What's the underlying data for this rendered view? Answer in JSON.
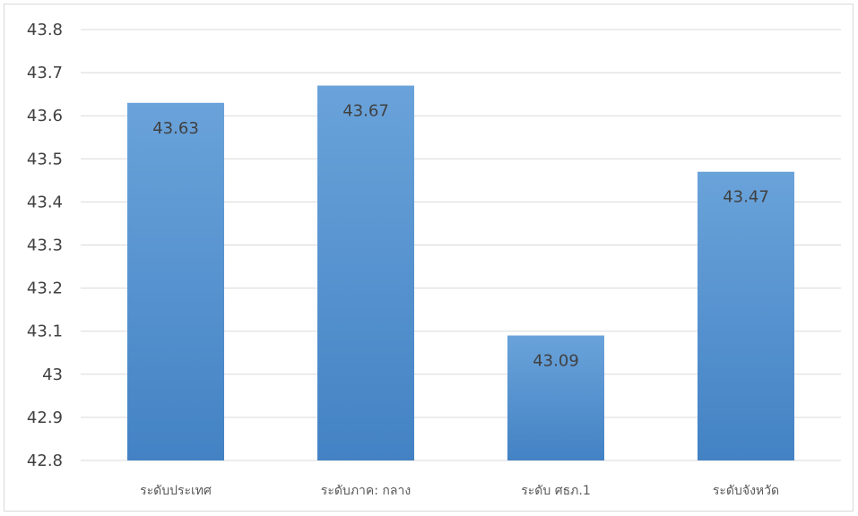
{
  "chart_data": {
    "type": "bar",
    "categories": [
      "ระดับประเทศ",
      "ระดับภาค: กลาง",
      "ระดับ ศธภ.1",
      "ระดับจังหวัด"
    ],
    "values": [
      43.63,
      43.67,
      43.09,
      43.47
    ],
    "data_labels": [
      "43.63",
      "43.67",
      "43.09",
      "43.47"
    ],
    "title": "",
    "xlabel": "",
    "ylabel": "",
    "ylim": [
      42.8,
      43.8
    ],
    "yticks": [
      42.8,
      42.9,
      43.0,
      43.1,
      43.2,
      43.3,
      43.4,
      43.5,
      43.6,
      43.7,
      43.8
    ],
    "ytick_labels": [
      "42.8",
      "42.9",
      "43",
      "43.1",
      "43.2",
      "43.3",
      "43.4",
      "43.5",
      "43.6",
      "43.7",
      "43.8"
    ],
    "grid": true,
    "legend": "none",
    "bar_color_top": "#6aa3da",
    "bar_color_bottom": "#4382c4",
    "grid_color": "#d9d9d9"
  }
}
